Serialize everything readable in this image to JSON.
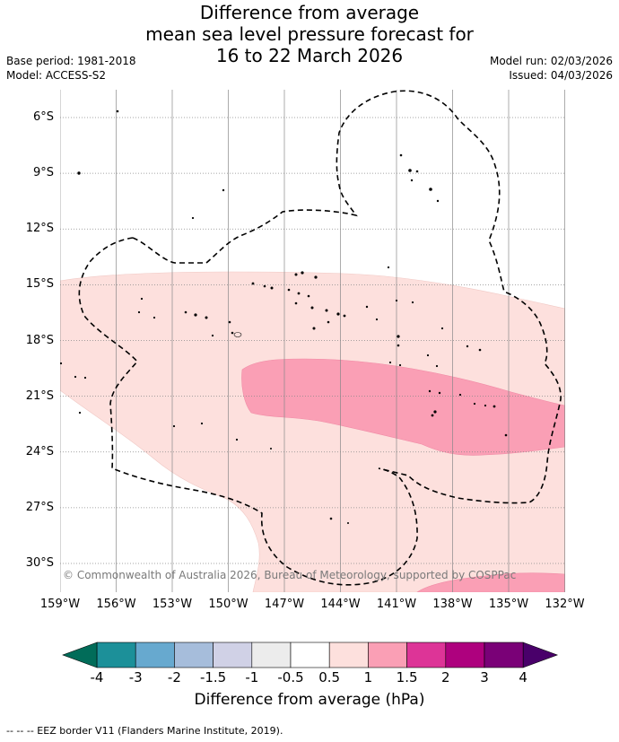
{
  "title": {
    "line1": "Difference from average",
    "line2": "mean sea level pressure forecast for",
    "line3": "16 to 22 March 2026"
  },
  "meta": {
    "base_period": "Base period: 1981-2018",
    "model": "Model: ACCESS-S2",
    "model_run": "Model run: 02/03/2026",
    "issued": "Issued: 04/03/2026"
  },
  "axes": {
    "lat_labels": [
      "6°S",
      "9°S",
      "12°S",
      "15°S",
      "18°S",
      "21°S",
      "24°S",
      "27°S",
      "30°S"
    ],
    "lon_labels": [
      "159°W",
      "156°W",
      "153°W",
      "150°W",
      "147°W",
      "144°W",
      "141°W",
      "138°W",
      "135°W",
      "132°W"
    ]
  },
  "colorbar": {
    "ticks": [
      "-4",
      "-3",
      "-2",
      "-1.5",
      "-1",
      "-0.5",
      "0.5",
      "1",
      "1.5",
      "2",
      "3",
      "4"
    ],
    "colors": [
      "#1c9099",
      "#67a9cf",
      "#a6bddb",
      "#d0d1e6",
      "#ececec",
      "#ffffff",
      "#fde0dd",
      "#fa9fb5",
      "#dd3497",
      "#ae017e",
      "#7a0177"
    ],
    "under_color": "#016c59",
    "over_color": "#49006a",
    "label": "Difference from average (hPa)"
  },
  "copyright": "© Commonwealth of Australia 2026, Bureau of Meteorology, supported by COSPPac",
  "footnote": "--  --  -- EEZ border V11 (Flanders Marine Institute, 2019)."
}
